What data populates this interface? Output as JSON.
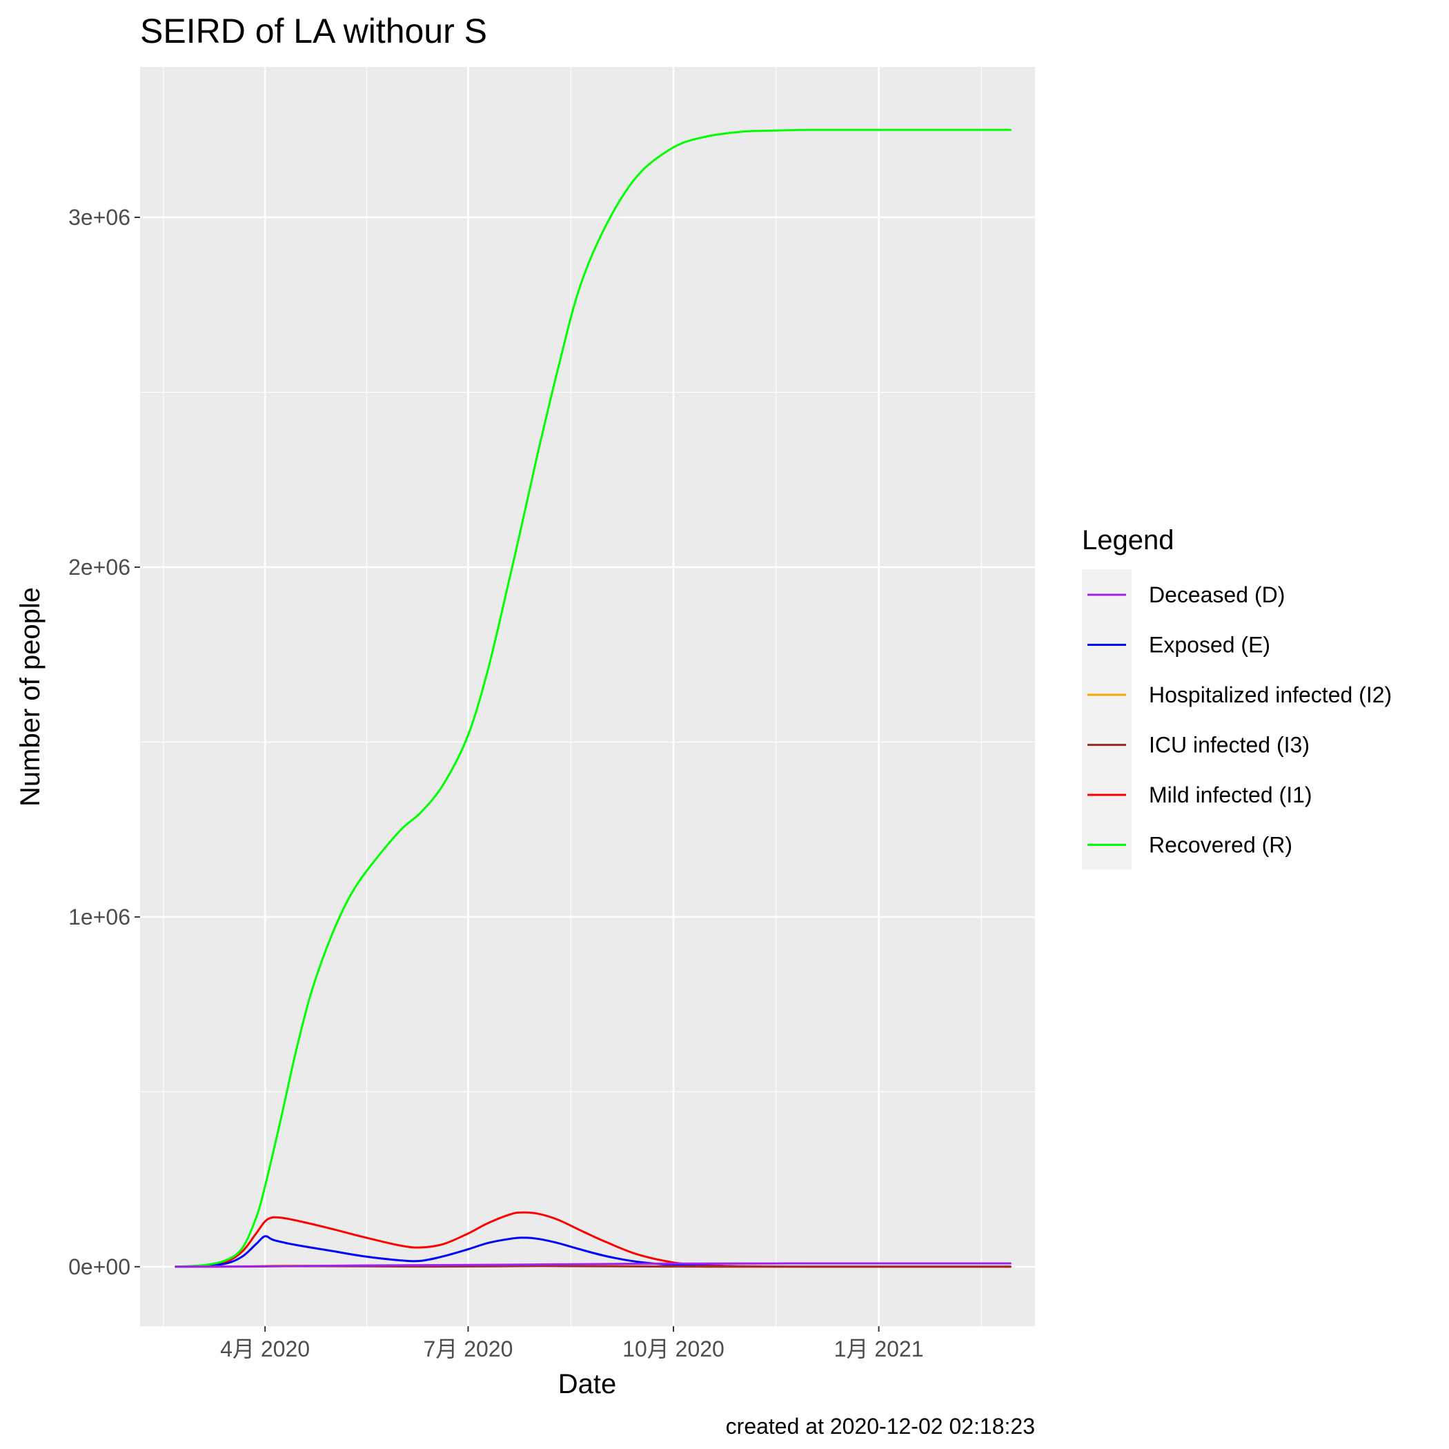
{
  "chart_data": {
    "type": "line",
    "title": "SEIRD of LA withour S",
    "xlabel": "Date",
    "ylabel": "Number of people",
    "caption": "created at 2020-12-02 02:18:23",
    "grid": true,
    "legend": {
      "title": "Legend",
      "placement": "right"
    },
    "xlim": [
      "2020-02-05",
      "2021-03-12"
    ],
    "ylim": [
      -170000,
      3430000
    ],
    "x_ticks": [
      {
        "value": "2020-04-01",
        "label": "4月 2020"
      },
      {
        "value": "2020-07-01",
        "label": "7月 2020"
      },
      {
        "value": "2020-10-01",
        "label": "10月 2020"
      },
      {
        "value": "2021-01-01",
        "label": "1月 2021"
      }
    ],
    "y_ticks": [
      {
        "value": 0,
        "label": "0e+00"
      },
      {
        "value": 1000000,
        "label": "1e+06"
      },
      {
        "value": 2000000,
        "label": "2e+06"
      },
      {
        "value": 3000000,
        "label": "3e+06"
      }
    ],
    "series": [
      {
        "name": "Deceased (D)",
        "color": "#a020f0",
        "x": [
          "2020-02-21",
          "2020-03-21",
          "2020-04-15",
          "2020-05-15",
          "2020-06-15",
          "2020-07-15",
          "2020-08-15",
          "2020-09-15",
          "2020-10-15",
          "2020-11-15",
          "2020-12-15",
          "2021-01-15",
          "2021-02-15",
          "2021-03-01"
        ],
        "y": [
          0,
          700,
          1800,
          3500,
          4500,
          5500,
          7000,
          8500,
          9200,
          9400,
          9500,
          9500,
          9500,
          9500
        ]
      },
      {
        "name": "Exposed (E)",
        "color": "#0000ff",
        "x": [
          "2020-02-21",
          "2020-03-05",
          "2020-03-15",
          "2020-03-22",
          "2020-03-28",
          "2020-04-01",
          "2020-04-05",
          "2020-04-15",
          "2020-05-01",
          "2020-05-15",
          "2020-06-01",
          "2020-06-10",
          "2020-06-20",
          "2020-07-01",
          "2020-07-10",
          "2020-07-20",
          "2020-07-25",
          "2020-08-01",
          "2020-08-10",
          "2020-08-20",
          "2020-09-01",
          "2020-09-15",
          "2020-10-01",
          "2020-10-15",
          "2020-11-01",
          "2020-12-01",
          "2021-01-01",
          "2021-02-01",
          "2021-03-01"
        ],
        "y": [
          0,
          2000,
          10000,
          30000,
          65000,
          87000,
          76000,
          62000,
          45000,
          30000,
          18000,
          17000,
          30000,
          50000,
          68000,
          80000,
          83000,
          80000,
          68000,
          50000,
          30000,
          14000,
          5000,
          2000,
          800,
          200,
          50,
          10,
          0
        ]
      },
      {
        "name": "Hospitalized infected (I2)",
        "color": "#ffa500",
        "x": [
          "2020-02-21",
          "2020-03-25",
          "2020-04-10",
          "2020-05-15",
          "2020-06-15",
          "2020-07-15",
          "2020-08-01",
          "2020-08-20",
          "2020-09-15",
          "2020-10-15",
          "2020-12-01",
          "2021-03-01"
        ],
        "y": [
          0,
          1000,
          3000,
          2000,
          1000,
          2000,
          3500,
          3000,
          1500,
          500,
          100,
          0
        ]
      },
      {
        "name": "ICU infected (I3)",
        "color": "#a52a2a",
        "x": [
          "2020-02-21",
          "2020-03-25",
          "2020-04-10",
          "2020-05-15",
          "2020-06-15",
          "2020-07-15",
          "2020-08-01",
          "2020-08-20",
          "2020-09-15",
          "2020-10-15",
          "2020-12-01",
          "2021-03-01"
        ],
        "y": [
          0,
          500,
          1500,
          1000,
          500,
          1000,
          1800,
          1500,
          800,
          300,
          50,
          0
        ]
      },
      {
        "name": "Mild infected (I1)",
        "color": "#ff0000",
        "x": [
          "2020-02-21",
          "2020-03-05",
          "2020-03-15",
          "2020-03-22",
          "2020-03-28",
          "2020-04-02",
          "2020-04-08",
          "2020-04-20",
          "2020-05-01",
          "2020-05-15",
          "2020-06-01",
          "2020-06-10",
          "2020-06-20",
          "2020-07-01",
          "2020-07-10",
          "2020-07-20",
          "2020-07-25",
          "2020-08-01",
          "2020-08-10",
          "2020-08-20",
          "2020-09-01",
          "2020-09-15",
          "2020-10-01",
          "2020-10-15",
          "2020-11-01",
          "2020-12-01",
          "2021-01-01",
          "2021-02-01",
          "2021-03-01"
        ],
        "y": [
          0,
          3000,
          15000,
          45000,
          95000,
          135000,
          140000,
          125000,
          108000,
          85000,
          60000,
          55000,
          65000,
          95000,
          125000,
          150000,
          155000,
          152000,
          135000,
          105000,
          70000,
          35000,
          12000,
          4000,
          1500,
          300,
          80,
          20,
          0
        ]
      },
      {
        "name": "Recovered (R)",
        "color": "#00ff00",
        "x": [
          "2020-02-21",
          "2020-03-05",
          "2020-03-15",
          "2020-03-22",
          "2020-03-28",
          "2020-04-01",
          "2020-04-08",
          "2020-04-15",
          "2020-04-22",
          "2020-05-01",
          "2020-05-10",
          "2020-05-20",
          "2020-06-01",
          "2020-06-10",
          "2020-06-20",
          "2020-07-01",
          "2020-07-10",
          "2020-07-20",
          "2020-07-25",
          "2020-08-01",
          "2020-08-10",
          "2020-08-20",
          "2020-09-01",
          "2020-09-15",
          "2020-10-01",
          "2020-10-15",
          "2020-11-01",
          "2020-11-15",
          "2020-12-01",
          "2021-01-01",
          "2021-02-01",
          "2021-03-01"
        ],
        "y": [
          0,
          5000,
          20000,
          55000,
          140000,
          230000,
          420000,
          620000,
          790000,
          950000,
          1070000,
          1160000,
          1250000,
          1300000,
          1380000,
          1520000,
          1710000,
          1980000,
          2120000,
          2320000,
          2560000,
          2800000,
          2980000,
          3120000,
          3200000,
          3230000,
          3245000,
          3248000,
          3250000,
          3250000,
          3250000,
          3250000
        ]
      }
    ]
  }
}
